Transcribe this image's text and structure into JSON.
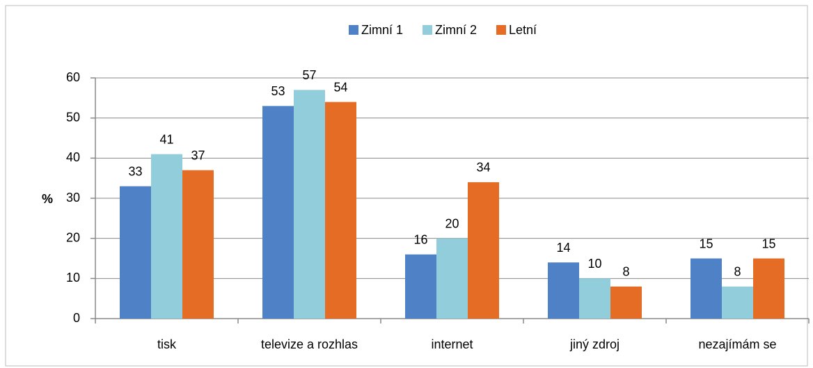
{
  "chart_data": {
    "type": "bar",
    "y_label": "%",
    "categories": [
      "tisk",
      "televize a rozhlas",
      "internet",
      "jiný zdroj",
      "nezajímám se"
    ],
    "series": [
      {
        "name": "Zimní 1",
        "color": "#4f81c7",
        "values": [
          33,
          53,
          16,
          14,
          15
        ]
      },
      {
        "name": "Zimní 2",
        "color": "#92cddc",
        "values": [
          41,
          57,
          20,
          10,
          8
        ]
      },
      {
        "name": "Letní",
        "color": "#e46c24",
        "values": [
          37,
          54,
          34,
          8,
          15
        ]
      }
    ],
    "ylim": [
      0,
      60
    ],
    "yticks": [
      0,
      10,
      20,
      30,
      40,
      50,
      60
    ],
    "grid": true,
    "legend": "top"
  }
}
